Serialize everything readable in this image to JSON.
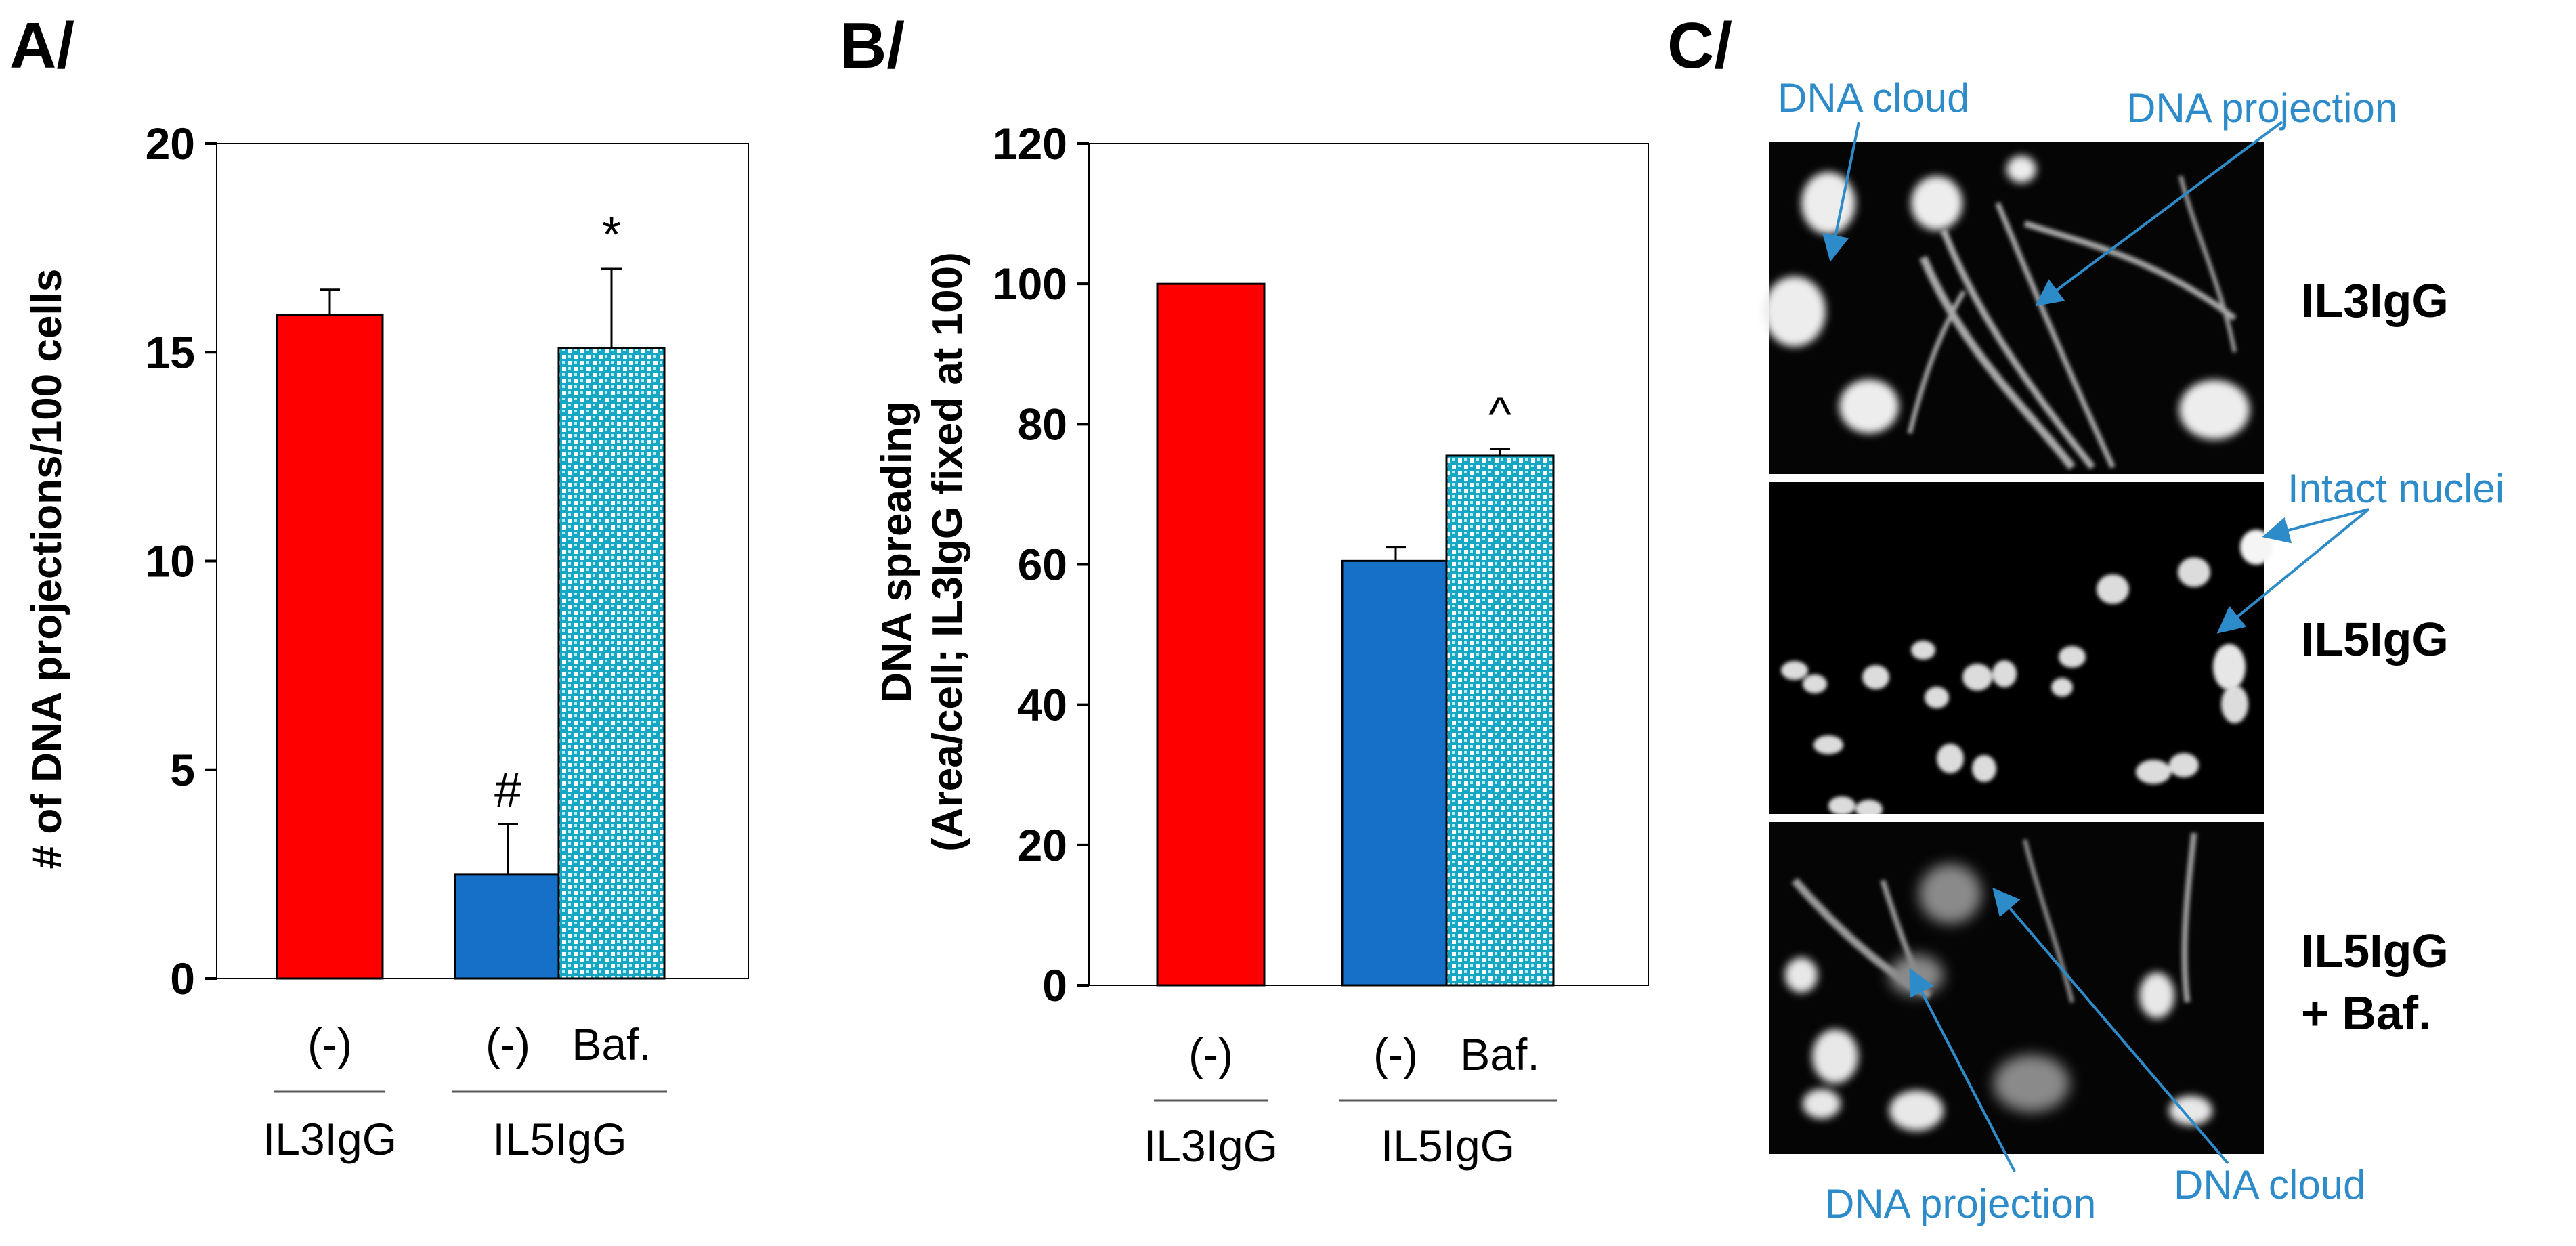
{
  "panels": {
    "a": "A/",
    "b": "B/",
    "c": "C/"
  },
  "colors": {
    "red": "#ff0000",
    "blue": "#1670c7",
    "dot": "#16a7c4",
    "annot": "#2e8bc9"
  },
  "chart_data": [
    {
      "type": "bar",
      "panel": "A/",
      "categories": [
        "(-)",
        "(-)",
        "Baf."
      ],
      "groups": [
        {
          "label": "IL3IgG",
          "members": [
            0
          ]
        },
        {
          "label": "IL5IgG",
          "members": [
            1,
            2
          ]
        }
      ],
      "values": [
        15.9,
        2.5,
        15.1
      ],
      "errors": [
        0.6,
        1.2,
        1.9
      ],
      "significance": [
        "",
        "#",
        "*"
      ],
      "bar_styles": [
        "red",
        "blue",
        "dots"
      ],
      "ylabel": "# of DNA projections/100 cells",
      "ylim": [
        0,
        20
      ],
      "yticks": [
        0,
        5,
        10,
        15,
        20
      ]
    },
    {
      "type": "bar",
      "panel": "B/",
      "categories": [
        "(-)",
        "(-)",
        "Baf."
      ],
      "groups": [
        {
          "label": "IL3IgG",
          "members": [
            0
          ]
        },
        {
          "label": "IL5IgG",
          "members": [
            1,
            2
          ]
        }
      ],
      "values": [
        100,
        60.5,
        75.5
      ],
      "errors": [
        0,
        2,
        1
      ],
      "significance": [
        "",
        "",
        "^"
      ],
      "bar_styles": [
        "red",
        "blue",
        "dots"
      ],
      "ylabel": "DNA spreading",
      "ylabel2": "(Area/cell; IL3IgG fixed at 100)",
      "ylim": [
        0,
        120
      ],
      "yticks": [
        0,
        20,
        40,
        60,
        80,
        100,
        120
      ]
    }
  ],
  "micrographs": {
    "conditions": [
      "IL3IgG",
      "IL5IgG",
      "IL5IgG",
      "+ Baf."
    ],
    "annotations": [
      "DNA cloud",
      "DNA projection",
      "Intact nuclei",
      "DNA projection",
      "DNA cloud"
    ]
  }
}
